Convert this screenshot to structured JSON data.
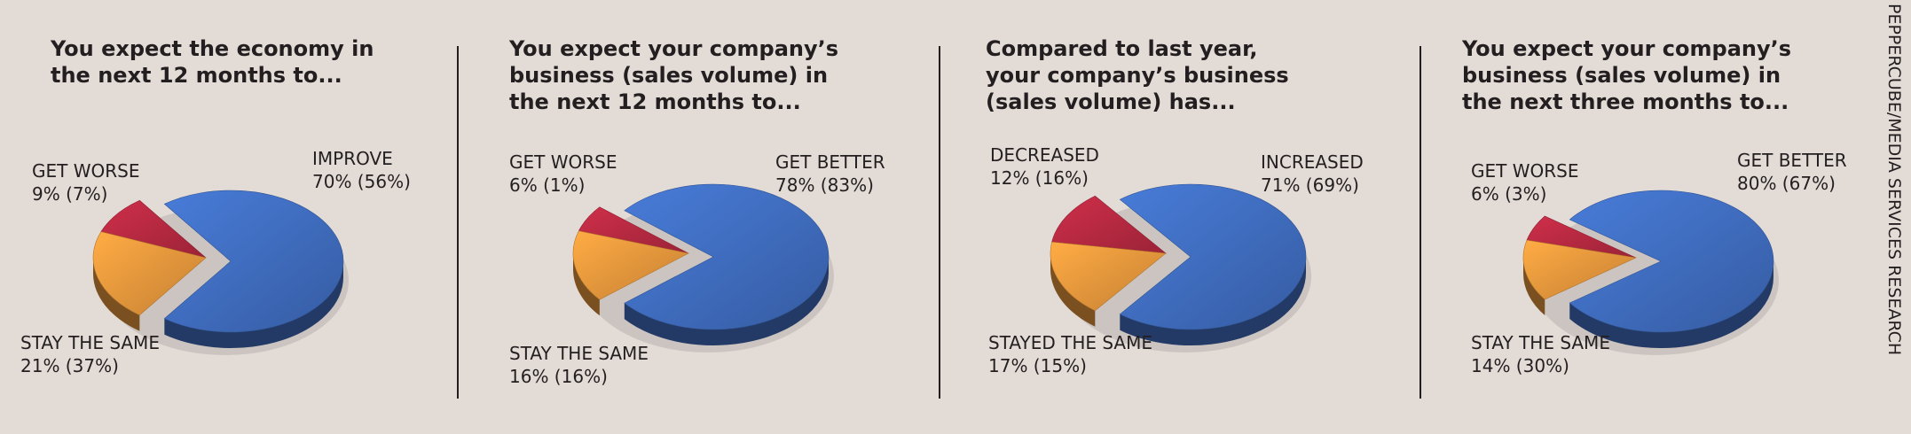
{
  "credit": "PEPPERCUBE/MEDIA SERVICES RESEARCH",
  "colors": {
    "improve": "#3d69b8",
    "worse": "#b0283f",
    "same": "#e0923a",
    "background": "#e3dbd6"
  },
  "chart_data": [
    {
      "type": "pie",
      "title_lines": [
        "You expect the economy in",
        "the next 12 months to..."
      ],
      "slices": [
        {
          "label": "IMPROVE",
          "text": "70% (56%)",
          "value": 70,
          "prior": 56,
          "color": "#3d69b8"
        },
        {
          "label": "GET WORSE",
          "text": "9% (7%)",
          "value": 9,
          "prior": 7,
          "color": "#b0283f"
        },
        {
          "label": "STAY THE SAME",
          "text": "21% (37%)",
          "value": 21,
          "prior": 37,
          "color": "#e0923a"
        }
      ]
    },
    {
      "type": "pie",
      "title_lines": [
        "You expect your company’s",
        "business (sales volume) in",
        "the next 12 months to..."
      ],
      "slices": [
        {
          "label": "GET BETTER",
          "text": "78% (83%)",
          "value": 78,
          "prior": 83,
          "color": "#3d69b8"
        },
        {
          "label": "GET WORSE",
          "text": "6% (1%)",
          "value": 6,
          "prior": 1,
          "color": "#b0283f"
        },
        {
          "label": "STAY THE SAME",
          "text": "16% (16%)",
          "value": 16,
          "prior": 16,
          "color": "#e0923a"
        }
      ]
    },
    {
      "type": "pie",
      "title_lines": [
        "Compared to last year,",
        "your company’s business",
        "(sales volume) has..."
      ],
      "slices": [
        {
          "label": "INCREASED",
          "text": "71% (69%)",
          "value": 71,
          "prior": 69,
          "color": "#3d69b8"
        },
        {
          "label": "DECREASED",
          "text": "12% (16%)",
          "value": 12,
          "prior": 16,
          "color": "#b0283f"
        },
        {
          "label": "STAYED THE SAME",
          "text": "17% (15%)",
          "value": 17,
          "prior": 15,
          "color": "#e0923a"
        }
      ]
    },
    {
      "type": "pie",
      "title_lines": [
        "You expect your company’s",
        "business (sales volume) in",
        "the next three months to..."
      ],
      "slices": [
        {
          "label": "GET BETTER",
          "text": "80% (67%)",
          "value": 80,
          "prior": 67,
          "color": "#3d69b8"
        },
        {
          "label": "GET WORSE",
          "text": "6% (3%)",
          "value": 6,
          "prior": 3,
          "color": "#b0283f"
        },
        {
          "label": "STAY THE SAME",
          "text": "14% (30%)",
          "value": 14,
          "prior": 30,
          "color": "#e0923a"
        }
      ]
    }
  ]
}
